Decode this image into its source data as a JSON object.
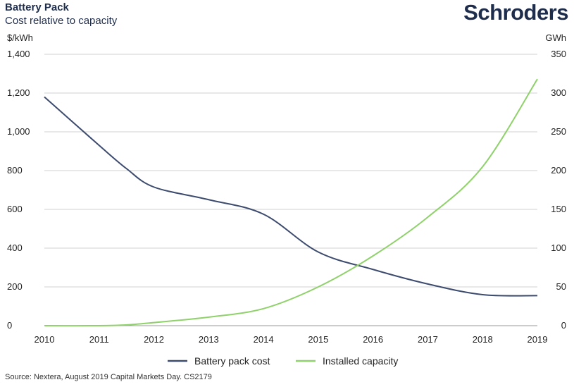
{
  "header": {
    "title": "Battery Pack",
    "subtitle": "Cost relative to capacity",
    "logo": "Schroders"
  },
  "footer": {
    "source": "Source: Nextera, August 2019 Capital Markets Day. CS2179"
  },
  "colors": {
    "cost": "#3c4b6e",
    "capacity": "#8fd16a",
    "gridline": "#d0d0d0",
    "text": "#1f2d4d"
  },
  "chart_data": {
    "type": "line",
    "title": "Battery Pack",
    "subtitle": "Cost relative to capacity",
    "x": [
      "2010",
      "2011",
      "2012",
      "2013",
      "2014",
      "2015",
      "2016",
      "2017",
      "2018",
      "2019"
    ],
    "left_axis": {
      "unit": "$/kWh",
      "ylim": [
        0,
        1400
      ],
      "ticks": [
        "0",
        "200",
        "400",
        "600",
        "800",
        "1,000",
        "1,200",
        "1,400"
      ]
    },
    "right_axis": {
      "unit": "GWh",
      "ylim": [
        0,
        350
      ],
      "ticks": [
        "0",
        "50",
        "100",
        "150",
        "200",
        "250",
        "300",
        "350"
      ]
    },
    "grid": true,
    "legend_position": "bottom",
    "series": [
      {
        "name": "Battery pack cost",
        "axis": "left",
        "color": "#3c4b6e",
        "points": [
          [
            2010,
            1180
          ],
          [
            2011,
            930
          ],
          [
            2011.5,
            810
          ],
          [
            2012,
            715
          ],
          [
            2013,
            650
          ],
          [
            2014,
            575
          ],
          [
            2015,
            380
          ],
          [
            2016,
            290
          ],
          [
            2017,
            215
          ],
          [
            2018,
            160
          ],
          [
            2019,
            155
          ]
        ]
      },
      {
        "name": "Installed capacity",
        "axis": "right",
        "color": "#8fd16a",
        "points": [
          [
            2010,
            0
          ],
          [
            2011,
            0
          ],
          [
            2011.5,
            1
          ],
          [
            2012,
            4
          ],
          [
            2013,
            11
          ],
          [
            2014,
            22
          ],
          [
            2015,
            50
          ],
          [
            2016,
            90
          ],
          [
            2017,
            140
          ],
          [
            2018,
            205
          ],
          [
            2019,
            318
          ]
        ]
      }
    ]
  }
}
